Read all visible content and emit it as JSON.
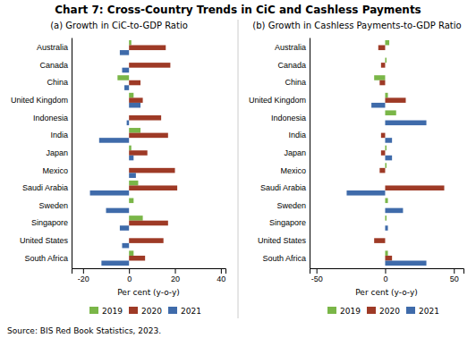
{
  "title": "Chart 7: Cross-Country Trends in CiC and Cashless Payments",
  "annotations": [
    "Source: BIS Red Book Statistics, 2023."
  ],
  "chart_data": [
    {
      "type": "bar",
      "orientation": "horizontal",
      "title": "(a) Growth in CiC-to-GDP Ratio",
      "xlabel": "Per cent (y-o-y)",
      "categories": [
        "Australia",
        "Canada",
        "China",
        "United Kingdom",
        "Indonesia",
        "India",
        "Japan",
        "Mexico",
        "Saudi Arabia",
        "Sweden",
        "Singapore",
        "United States",
        "South Africa"
      ],
      "series": [
        {
          "name": "2019",
          "color": "#7ab648",
          "values": [
            1,
            0,
            -5,
            2,
            0,
            5,
            1,
            0,
            4,
            2,
            6,
            0,
            2
          ]
        },
        {
          "name": "2020",
          "color": "#9e3a26",
          "values": [
            16,
            18,
            5,
            6,
            14,
            17,
            8,
            20,
            21,
            0,
            17,
            15,
            7
          ]
        },
        {
          "name": "2021",
          "color": "#3f6baa",
          "values": [
            -4,
            -3,
            -2,
            5,
            -1,
            -13,
            2,
            3,
            -17,
            -10,
            -4,
            -3,
            -12
          ]
        }
      ],
      "xlim": [
        -25,
        42
      ],
      "xticks": [
        -20,
        0,
        20,
        40
      ],
      "legend": "bottom"
    },
    {
      "type": "bar",
      "orientation": "horizontal",
      "title": "(b) Growth in Cashless Payments-to-GDP Ratio",
      "xlabel": "Per cent (y-o-y)",
      "categories": [
        "Australia",
        "Canada",
        "China",
        "United Kingdom",
        "Indonesia",
        "India",
        "Japan",
        "Mexico",
        "Saudi Arabia",
        "Sweden",
        "Singapore",
        "United States",
        "South Africa"
      ],
      "series": [
        {
          "name": "2019",
          "color": "#7ab648",
          "values": [
            3,
            1,
            -8,
            2,
            8,
            0,
            1,
            1,
            0,
            2,
            1,
            0,
            2
          ]
        },
        {
          "name": "2020",
          "color": "#9e3a26",
          "values": [
            -5,
            -3,
            -4,
            15,
            0,
            -3,
            -3,
            -4,
            43,
            0,
            0,
            -8,
            5
          ]
        },
        {
          "name": "2021",
          "color": "#3f6baa",
          "values": [
            0,
            0,
            0,
            -10,
            30,
            5,
            5,
            0,
            -28,
            13,
            2,
            0,
            30
          ]
        }
      ],
      "xlim": [
        -55,
        57
      ],
      "xticks": [
        -50,
        0,
        50
      ],
      "legend": "bottom"
    }
  ]
}
